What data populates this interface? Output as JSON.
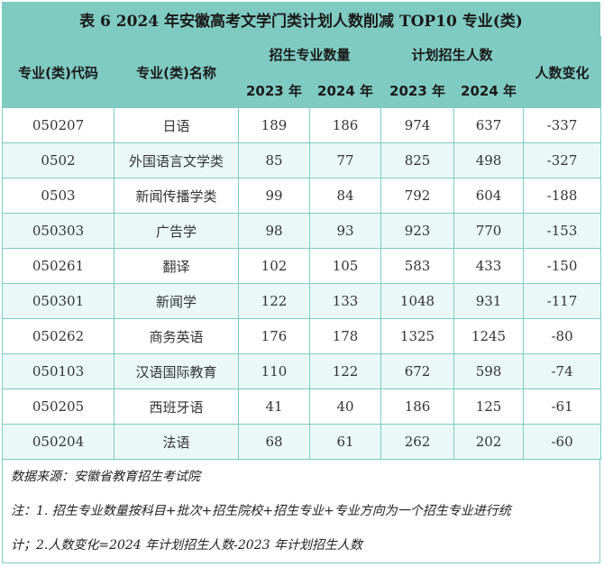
{
  "title": "表 6  2024 年安徽高考文学门类计划人数削减 TOP10 专业(类)",
  "headers": {
    "code": "专业(类)代码",
    "name": "专业(类)名称",
    "major_count": "招生专业数量",
    "plan_count": "计划招生人数",
    "change": "人数变化",
    "y2023": "2023 年",
    "y2024": "2024 年"
  },
  "rows": [
    {
      "code": "050207",
      "name": "日语",
      "m2023": "189",
      "m2024": "186",
      "p2023": "974",
      "p2024": "637",
      "change": "-337"
    },
    {
      "code": "0502",
      "name": "外国语言文学类",
      "m2023": "85",
      "m2024": "77",
      "p2023": "825",
      "p2024": "498",
      "change": "-327"
    },
    {
      "code": "0503",
      "name": "新闻传播学类",
      "m2023": "99",
      "m2024": "84",
      "p2023": "792",
      "p2024": "604",
      "change": "-188"
    },
    {
      "code": "050303",
      "name": "广告学",
      "m2023": "98",
      "m2024": "93",
      "p2023": "923",
      "p2024": "770",
      "change": "-153"
    },
    {
      "code": "050261",
      "name": "翻译",
      "m2023": "102",
      "m2024": "105",
      "p2023": "583",
      "p2024": "433",
      "change": "-150"
    },
    {
      "code": "050301",
      "name": "新闻学",
      "m2023": "122",
      "m2024": "133",
      "p2023": "1048",
      "p2024": "931",
      "change": "-117"
    },
    {
      "code": "050262",
      "name": "商务英语",
      "m2023": "176",
      "m2024": "178",
      "p2023": "1325",
      "p2024": "1245",
      "change": "-80"
    },
    {
      "code": "050103",
      "name": "汉语国际教育",
      "m2023": "110",
      "m2024": "122",
      "p2023": "672",
      "p2024": "598",
      "change": "-74"
    },
    {
      "code": "050205",
      "name": "西班牙语",
      "m2023": "41",
      "m2024": "40",
      "p2023": "186",
      "p2024": "125",
      "change": "-61"
    },
    {
      "code": "050204",
      "name": "法语",
      "m2023": "68",
      "m2024": "61",
      "p2023": "262",
      "p2024": "202",
      "change": "-60"
    }
  ],
  "notes": {
    "source": "数据来源：安徽省教育招生考试院",
    "note_line1": "注：1. 招生专业数量按科目+批次+招生院校+招生专业+专业方向为一个招生专业进行统",
    "note_line2": "计；2.人数变化=2024 年计划招生人数-2023 年计划招生人数"
  },
  "colors": {
    "header": "#7fcbc2",
    "stripe": "#eaf8f7"
  }
}
